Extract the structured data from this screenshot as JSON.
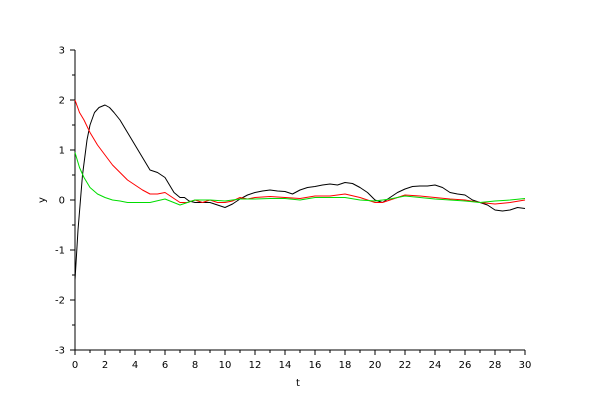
{
  "chart_data": {
    "type": "line",
    "title": "",
    "xlabel": "t",
    "ylabel": "y",
    "xlim": [
      0,
      30
    ],
    "ylim": [
      -3,
      3
    ],
    "xticks": [
      0,
      2,
      4,
      6,
      8,
      10,
      12,
      14,
      16,
      18,
      20,
      22,
      24,
      26,
      28,
      30
    ],
    "yticks": [
      -3,
      -2,
      -1,
      0,
      1,
      2,
      3
    ],
    "grid": false,
    "legend": "none",
    "series": [
      {
        "color": "#000000",
        "x": [
          0,
          0.2,
          0.5,
          0.8,
          1.0,
          1.3,
          1.6,
          2.0,
          2.3,
          2.6,
          3.0,
          3.5,
          4.0,
          4.5,
          5.0,
          5.5,
          6.0,
          6.3,
          6.6,
          7.0,
          7.3,
          7.6,
          8.0,
          8.5,
          9.0,
          9.5,
          10.0,
          10.5,
          11.0,
          11.5,
          12.0,
          12.5,
          13.0,
          13.5,
          14.0,
          14.5,
          15.0,
          15.5,
          16.0,
          16.5,
          17.0,
          17.5,
          18.0,
          18.5,
          19.0,
          19.5,
          20.0,
          20.5,
          21.0,
          21.5,
          22.0,
          22.5,
          23.0,
          23.5,
          24.0,
          24.5,
          25.0,
          25.5,
          26.0,
          26.5,
          27.0,
          27.5,
          28.0,
          28.5,
          29.0,
          29.5,
          30.0
        ],
        "y": [
          -1.6,
          -0.6,
          0.5,
          1.2,
          1.5,
          1.75,
          1.85,
          1.9,
          1.85,
          1.75,
          1.6,
          1.35,
          1.1,
          0.85,
          0.6,
          0.55,
          0.45,
          0.3,
          0.15,
          0.05,
          0.05,
          -0.02,
          -0.05,
          -0.05,
          -0.05,
          -0.1,
          -0.15,
          -0.08,
          0.02,
          0.1,
          0.15,
          0.18,
          0.2,
          0.18,
          0.17,
          0.12,
          0.2,
          0.25,
          0.27,
          0.3,
          0.32,
          0.3,
          0.35,
          0.33,
          0.25,
          0.15,
          0.0,
          -0.05,
          0.05,
          0.15,
          0.22,
          0.27,
          0.28,
          0.28,
          0.3,
          0.25,
          0.15,
          0.12,
          0.1,
          0.0,
          -0.05,
          -0.1,
          -0.2,
          -0.22,
          -0.2,
          -0.15,
          -0.17
        ]
      },
      {
        "color": "#ff0000",
        "x": [
          0,
          0.3,
          0.6,
          1.0,
          1.5,
          2.0,
          2.5,
          3.0,
          3.5,
          4.0,
          4.5,
          5.0,
          5.5,
          6.0,
          6.5,
          7.0,
          7.5,
          8.0,
          8.5,
          9.0,
          9.5,
          10.0,
          10.5,
          11.0,
          11.5,
          12.0,
          13.0,
          14.0,
          15.0,
          16.0,
          17.0,
          18.0,
          19.0,
          20.0,
          20.5,
          21.0,
          22.0,
          23.0,
          24.0,
          25.0,
          26.0,
          27.0,
          28.0,
          29.0,
          30.0
        ],
        "y": [
          2.0,
          1.75,
          1.6,
          1.35,
          1.1,
          0.9,
          0.7,
          0.55,
          0.4,
          0.3,
          0.2,
          0.12,
          0.12,
          0.15,
          0.05,
          -0.05,
          -0.05,
          0.0,
          -0.05,
          0.0,
          -0.05,
          -0.05,
          -0.02,
          0.05,
          0.02,
          0.05,
          0.07,
          0.05,
          0.03,
          0.08,
          0.08,
          0.12,
          0.05,
          -0.05,
          -0.05,
          0.0,
          0.1,
          0.08,
          0.05,
          0.02,
          0.0,
          -0.05,
          -0.08,
          -0.05,
          0.0
        ]
      },
      {
        "color": "#00dd00",
        "x": [
          0,
          0.3,
          0.6,
          1.0,
          1.5,
          2.0,
          2.5,
          3.0,
          3.5,
          4.0,
          5.0,
          6.0,
          7.0,
          8.0,
          9.0,
          10.0,
          11.0,
          12.0,
          13.0,
          14.0,
          15.0,
          16.0,
          17.0,
          18.0,
          19.0,
          20.0,
          21.0,
          22.0,
          23.0,
          24.0,
          25.0,
          26.0,
          27.0,
          28.0,
          29.0,
          30.0
        ],
        "y": [
          0.95,
          0.65,
          0.45,
          0.25,
          0.12,
          0.05,
          0.0,
          -0.02,
          -0.05,
          -0.05,
          -0.05,
          0.02,
          -0.1,
          0.0,
          0.0,
          -0.02,
          0.02,
          0.02,
          0.03,
          0.03,
          0.0,
          0.05,
          0.05,
          0.05,
          0.0,
          -0.02,
          0.02,
          0.08,
          0.05,
          0.02,
          0.0,
          -0.02,
          -0.05,
          -0.02,
          0.0,
          0.03
        ]
      }
    ]
  }
}
